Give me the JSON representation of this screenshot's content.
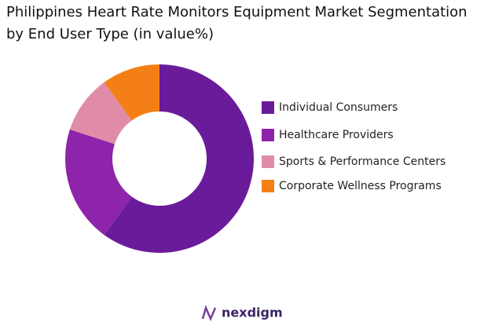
{
  "chart_data": {
    "type": "donut",
    "title": "Philippines Heart Rate Monitors Equipment Market Segmentation by End User Type (in value%)",
    "categories": [
      "Individual Consumers",
      "Healthcare Providers",
      "Sports & Performance Centers",
      "Corporate Wellness Programs"
    ],
    "values": [
      60,
      20,
      10,
      10
    ],
    "colors": [
      "#6a1b9a",
      "#8e24aa",
      "#e08ca8",
      "#f57f17"
    ],
    "legend": "right"
  },
  "brand": "nexdigm"
}
